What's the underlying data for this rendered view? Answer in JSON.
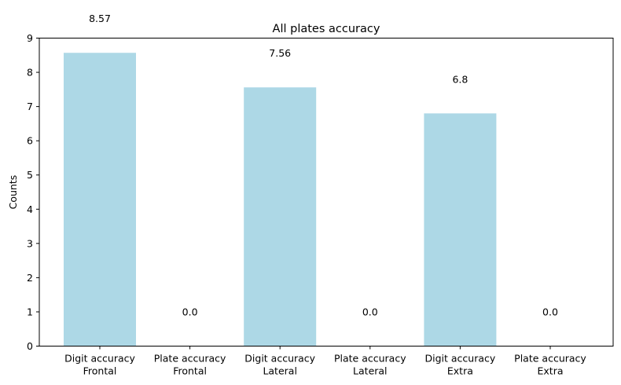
{
  "chart_data": {
    "type": "bar",
    "title": "All plates accuracy",
    "xlabel": "",
    "ylabel": "Counts",
    "ylim": [
      0,
      9
    ],
    "yticks": [
      0,
      1,
      2,
      3,
      4,
      5,
      6,
      7,
      8,
      9
    ],
    "categories": [
      "Digit accuracy\nFrontal",
      "Plate accuracy\nFrontal",
      "Digit accuracy\nLateral",
      "Plate accuracy\nLateral",
      "Digit accuracy\nExtra",
      "Plate accuracy\nExtra"
    ],
    "values": [
      8.57,
      0.0,
      7.56,
      0.0,
      6.8,
      0.0
    ],
    "data_labels": [
      "8.57",
      "0.0",
      "7.56",
      "0.0",
      "6.8",
      "0.0"
    ],
    "bar_color": "#add8e6",
    "grid": false,
    "legend": "none"
  }
}
